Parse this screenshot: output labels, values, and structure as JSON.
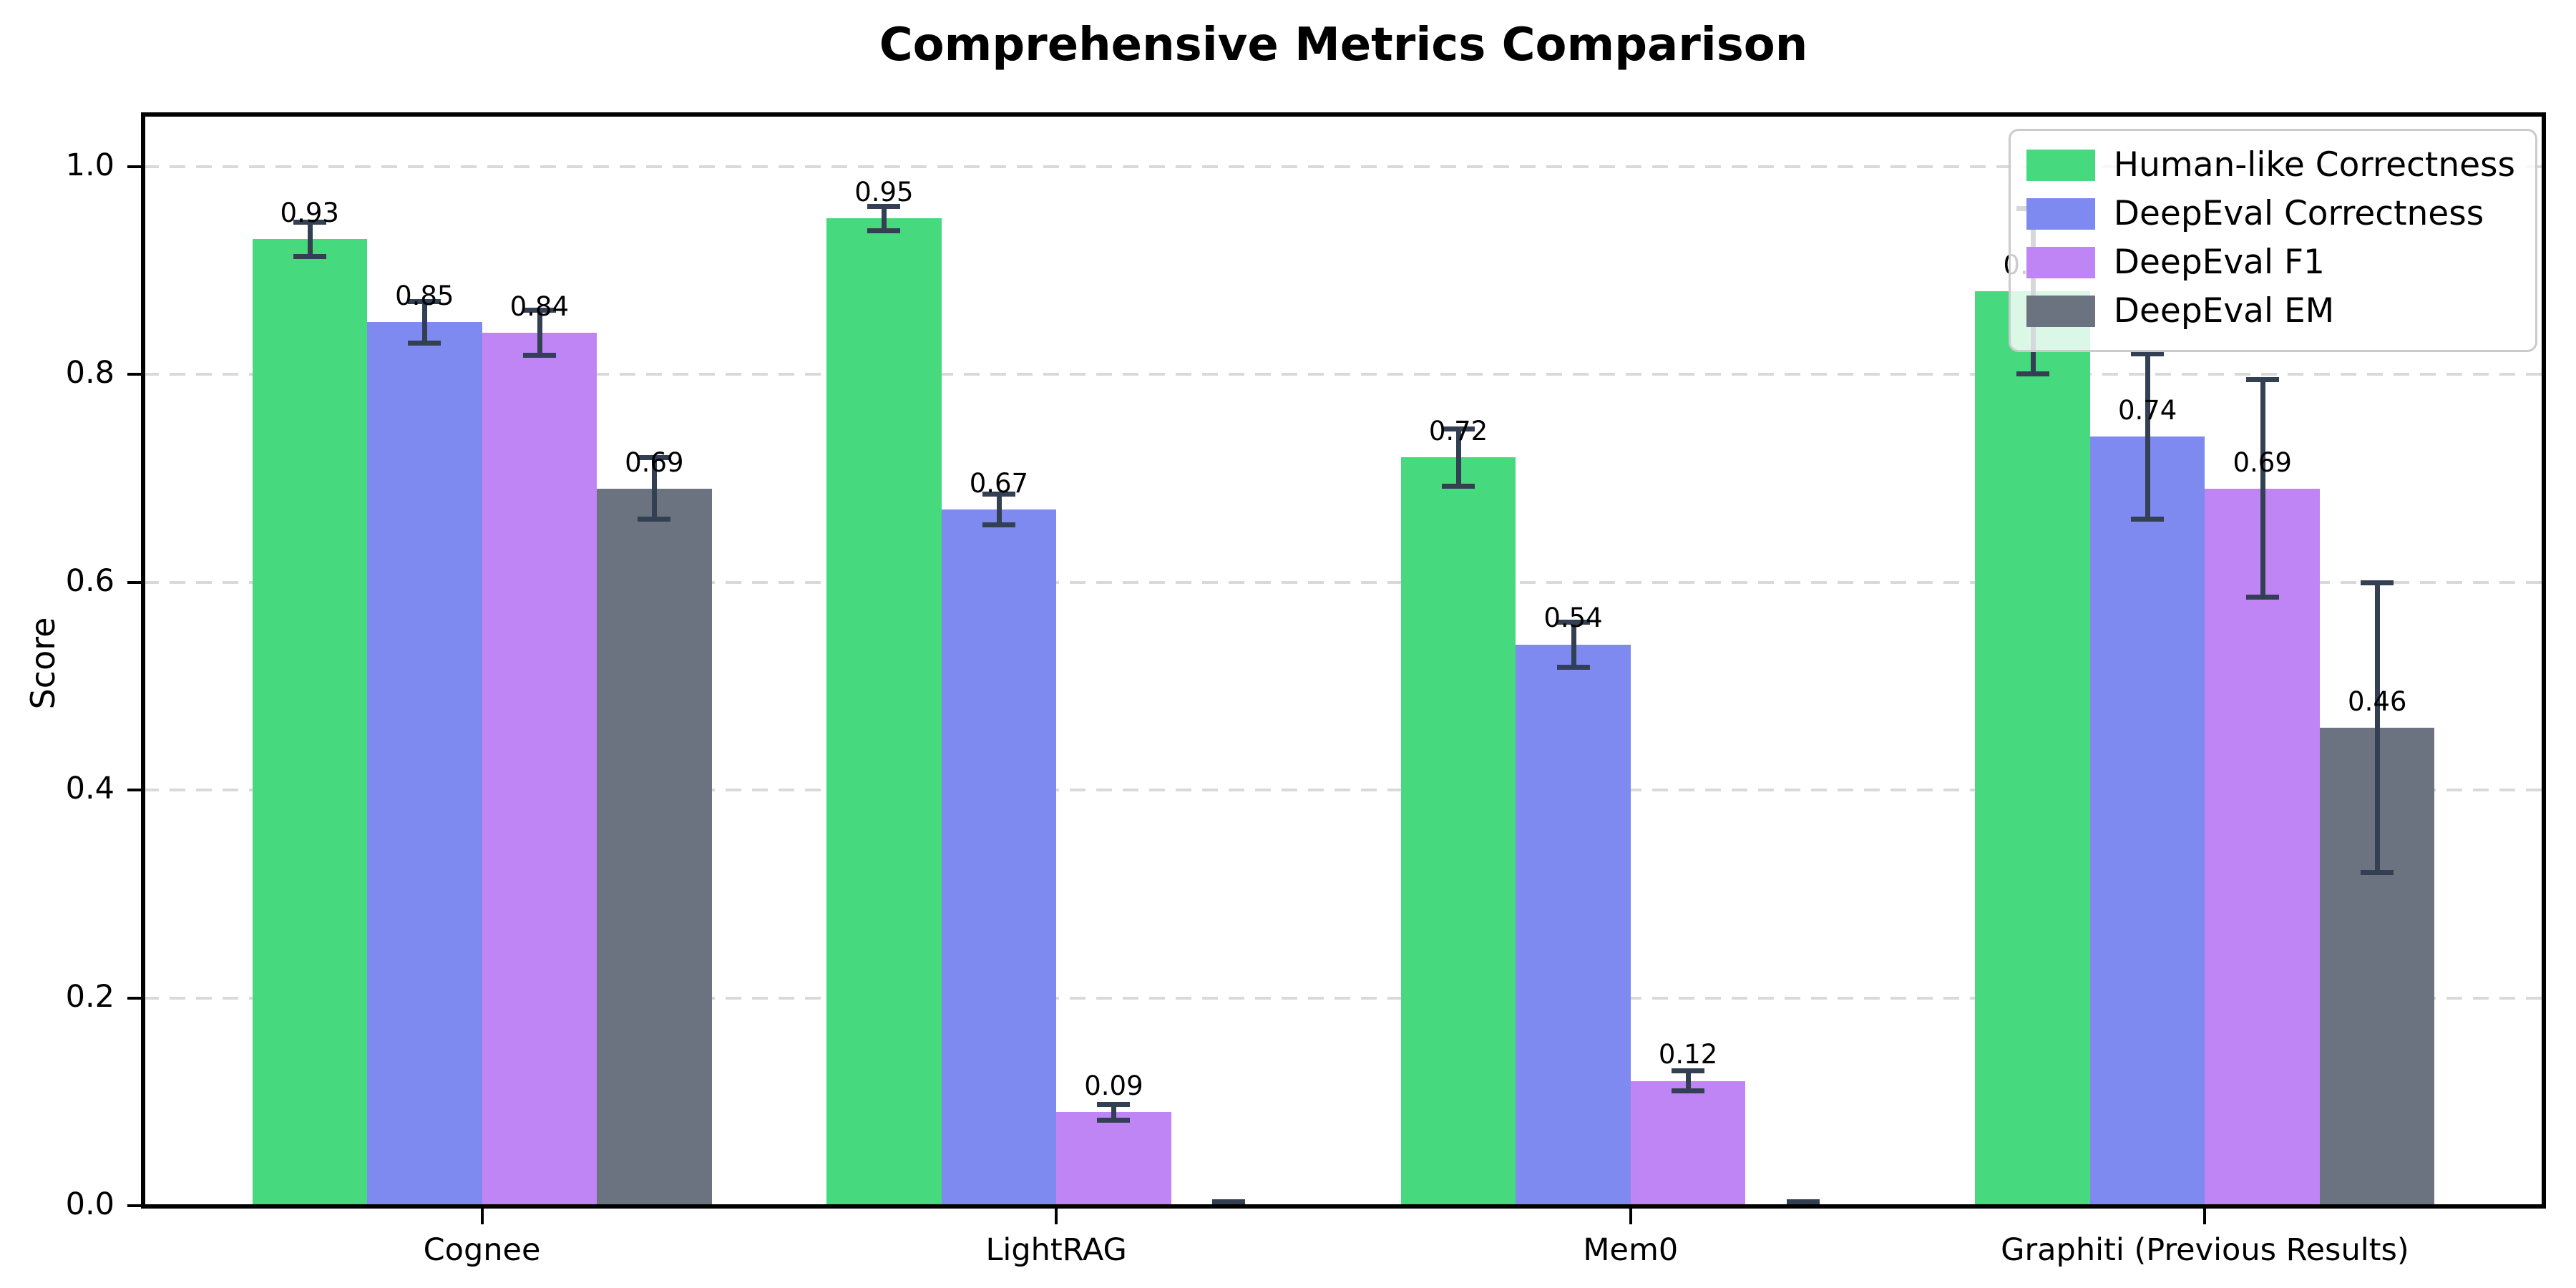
{
  "page": {
    "background": "#ffffff"
  },
  "chart_data": {
    "type": "bar",
    "title": "Comprehensive Metrics Comparison",
    "xlabel": "",
    "ylabel": "Score",
    "categories": [
      "Cognee",
      "LightRAG",
      "Mem0",
      "Graphiti (Previous Results)"
    ],
    "series": [
      {
        "name": "Human-like Correctness",
        "color": "#46d97e",
        "values": [
          0.93,
          0.95,
          0.72,
          0.88
        ],
        "errors": [
          0.017,
          0.012,
          0.028,
          0.08
        ]
      },
      {
        "name": "DeepEval Correctness",
        "color": "#7f8af0",
        "values": [
          0.85,
          0.67,
          0.54,
          0.74
        ],
        "errors": [
          0.02,
          0.015,
          0.022,
          0.08
        ]
      },
      {
        "name": "DeepEval F1",
        "color": "#c085f5",
        "values": [
          0.84,
          0.09,
          0.12,
          0.69
        ],
        "errors": [
          0.022,
          0.008,
          0.01,
          0.105
        ]
      },
      {
        "name": "DeepEval EM",
        "color": "#6b7280",
        "values": [
          0.69,
          0.0,
          0.0,
          0.46
        ],
        "errors": [
          0.03,
          0.004,
          0.004,
          0.14
        ]
      }
    ],
    "bar_value_labels": [
      [
        "0.93",
        "0.95",
        "0.72",
        "0.88"
      ],
      [
        "0.85",
        "0.67",
        "0.54",
        "0.74"
      ],
      [
        "0.84",
        "0.09",
        "0.12",
        "0.69"
      ],
      [
        "0.69",
        "",
        "",
        "0.46"
      ]
    ],
    "yticks": [
      "0.0",
      "0.2",
      "0.4",
      "0.6",
      "0.8",
      "1.0"
    ],
    "ylim": [
      0,
      1.05
    ],
    "grid": "horizontal dashed",
    "legend_position": "upper right",
    "colors": {
      "errorbar": "#333f52",
      "grid": "#d9d9d9",
      "axis": "#000000",
      "text": "#000000"
    }
  }
}
